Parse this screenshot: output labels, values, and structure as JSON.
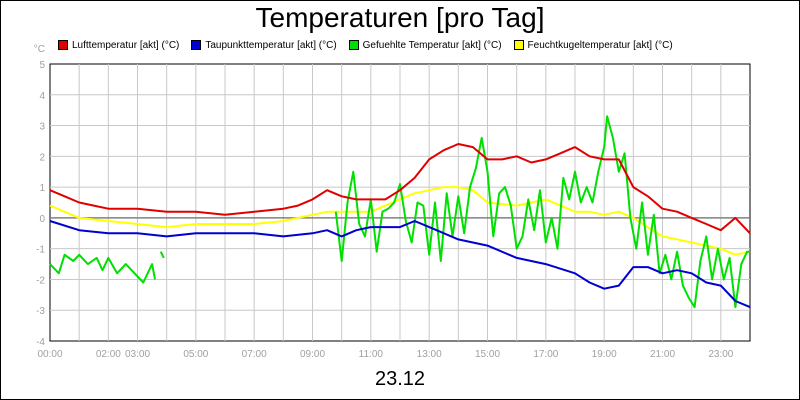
{
  "title": "Temperaturen [pro Tag]",
  "date_label": "23.12",
  "chart_data": {
    "type": "line",
    "unit": "°C",
    "ylim": [
      -4,
      5
    ],
    "yticks": [
      "-4",
      "-3",
      "-2",
      "-1",
      "0",
      "1",
      "2",
      "3",
      "4",
      "5"
    ],
    "xlim": [
      0,
      24
    ],
    "xticks": [
      "00:00",
      "02:00",
      "03:00",
      "05:00",
      "07:00",
      "09:00",
      "11:00",
      "13:00",
      "15:00",
      "17:00",
      "19:00",
      "21:00",
      "23:00"
    ],
    "xtick_hours": [
      0,
      2,
      3,
      5,
      7,
      9,
      11,
      13,
      15,
      17,
      19,
      21,
      23
    ],
    "grid": true,
    "legend_position": "top",
    "series": [
      {
        "name": "Lufttemperatur [akt] (°C)",
        "color": "#e00000",
        "points": [
          [
            0,
            0.9
          ],
          [
            0.5,
            0.7
          ],
          [
            1,
            0.5
          ],
          [
            1.5,
            0.4
          ],
          [
            2,
            0.3
          ],
          [
            2.5,
            0.3
          ],
          [
            3,
            0.3
          ],
          [
            3.5,
            0.25
          ],
          [
            4,
            0.2
          ],
          [
            5,
            0.2
          ],
          [
            6,
            0.1
          ],
          [
            7,
            0.2
          ],
          [
            8,
            0.3
          ],
          [
            8.5,
            0.4
          ],
          [
            9,
            0.6
          ],
          [
            9.5,
            0.9
          ],
          [
            10,
            0.7
          ],
          [
            10.5,
            0.6
          ],
          [
            11,
            0.6
          ],
          [
            11.5,
            0.6
          ],
          [
            12,
            0.9
          ],
          [
            12.5,
            1.3
          ],
          [
            13,
            1.9
          ],
          [
            13.5,
            2.2
          ],
          [
            14,
            2.4
          ],
          [
            14.5,
            2.3
          ],
          [
            15,
            1.9
          ],
          [
            15.5,
            1.9
          ],
          [
            16,
            2.0
          ],
          [
            16.5,
            1.8
          ],
          [
            17,
            1.9
          ],
          [
            17.5,
            2.1
          ],
          [
            18,
            2.3
          ],
          [
            18.5,
            2.0
          ],
          [
            19,
            1.9
          ],
          [
            19.5,
            1.9
          ],
          [
            20,
            1.0
          ],
          [
            20.5,
            0.7
          ],
          [
            21,
            0.3
          ],
          [
            21.5,
            0.2
          ],
          [
            22,
            0.0
          ],
          [
            22.5,
            -0.2
          ],
          [
            23,
            -0.4
          ],
          [
            23.5,
            0.0
          ],
          [
            24,
            -0.5
          ]
        ]
      },
      {
        "name": "Taupunkttemperatur [akt] (°C)",
        "color": "#0000d0",
        "points": [
          [
            0,
            -0.1
          ],
          [
            1,
            -0.4
          ],
          [
            2,
            -0.5
          ],
          [
            3,
            -0.5
          ],
          [
            4,
            -0.6
          ],
          [
            5,
            -0.5
          ],
          [
            6,
            -0.5
          ],
          [
            7,
            -0.5
          ],
          [
            8,
            -0.6
          ],
          [
            9,
            -0.5
          ],
          [
            9.5,
            -0.4
          ],
          [
            10,
            -0.6
          ],
          [
            10.5,
            -0.4
          ],
          [
            11,
            -0.3
          ],
          [
            12,
            -0.3
          ],
          [
            12.5,
            -0.1
          ],
          [
            13,
            -0.3
          ],
          [
            14,
            -0.7
          ],
          [
            15,
            -0.9
          ],
          [
            16,
            -1.3
          ],
          [
            17,
            -1.5
          ],
          [
            18,
            -1.8
          ],
          [
            18.5,
            -2.1
          ],
          [
            19,
            -2.3
          ],
          [
            19.5,
            -2.2
          ],
          [
            20,
            -1.6
          ],
          [
            20.5,
            -1.6
          ],
          [
            21,
            -1.8
          ],
          [
            21.5,
            -1.7
          ],
          [
            22,
            -1.8
          ],
          [
            22.5,
            -2.1
          ],
          [
            23,
            -2.2
          ],
          [
            23.5,
            -2.7
          ],
          [
            24,
            -2.9
          ]
        ]
      },
      {
        "name": "Gefuehlte Temperatur [akt] (°C)",
        "color": "#00e000",
        "segments": [
          [
            [
              0,
              -1.5
            ],
            [
              0.3,
              -1.8
            ],
            [
              0.5,
              -1.2
            ],
            [
              0.8,
              -1.4
            ],
            [
              1,
              -1.2
            ],
            [
              1.3,
              -1.5
            ],
            [
              1.6,
              -1.3
            ],
            [
              1.8,
              -1.7
            ],
            [
              2,
              -1.3
            ],
            [
              2.3,
              -1.8
            ],
            [
              2.6,
              -1.5
            ],
            [
              3,
              -1.9
            ],
            [
              3.2,
              -2.1
            ],
            [
              3.5,
              -1.5
            ],
            [
              3.6,
              -2.0
            ]
          ],
          [
            [
              3.8,
              -1.1
            ],
            [
              3.9,
              -1.3
            ]
          ],
          [
            [
              9.8,
              0.2
            ],
            [
              10,
              -1.4
            ],
            [
              10.2,
              0.5
            ],
            [
              10.4,
              1.5
            ],
            [
              10.6,
              -0.2
            ],
            [
              10.8,
              -0.6
            ],
            [
              11,
              0.6
            ],
            [
              11.2,
              -1.1
            ],
            [
              11.4,
              0.2
            ],
            [
              11.6,
              0.3
            ],
            [
              11.8,
              0.5
            ],
            [
              12,
              1.1
            ],
            [
              12.2,
              -0.1
            ],
            [
              12.4,
              -0.8
            ],
            [
              12.6,
              0.5
            ],
            [
              12.8,
              0.4
            ],
            [
              13,
              -1.2
            ],
            [
              13.2,
              0.5
            ],
            [
              13.4,
              -1.4
            ],
            [
              13.6,
              0.8
            ],
            [
              13.8,
              -0.6
            ],
            [
              14,
              0.7
            ],
            [
              14.2,
              -0.5
            ],
            [
              14.4,
              1.0
            ],
            [
              14.6,
              1.6
            ],
            [
              14.8,
              2.6
            ],
            [
              15,
              1.5
            ],
            [
              15.2,
              -0.6
            ],
            [
              15.4,
              0.8
            ],
            [
              15.6,
              1.0
            ],
            [
              15.8,
              0.4
            ],
            [
              16,
              -1.0
            ],
            [
              16.2,
              -0.6
            ],
            [
              16.4,
              0.6
            ],
            [
              16.6,
              -0.4
            ],
            [
              16.8,
              0.9
            ],
            [
              17,
              -0.8
            ],
            [
              17.2,
              0.0
            ],
            [
              17.4,
              -1.0
            ],
            [
              17.6,
              1.3
            ],
            [
              17.8,
              0.6
            ],
            [
              18,
              1.5
            ],
            [
              18.2,
              0.5
            ],
            [
              18.4,
              1.0
            ],
            [
              18.6,
              0.5
            ],
            [
              18.8,
              1.5
            ],
            [
              19,
              2.3
            ],
            [
              19.1,
              3.3
            ],
            [
              19.3,
              2.6
            ],
            [
              19.5,
              1.5
            ],
            [
              19.7,
              2.1
            ],
            [
              19.9,
              0.0
            ],
            [
              20.1,
              -1.0
            ],
            [
              20.3,
              0.5
            ],
            [
              20.5,
              -1.2
            ],
            [
              20.7,
              0.1
            ],
            [
              20.9,
              -1.8
            ],
            [
              21.1,
              -1.2
            ],
            [
              21.3,
              -2.0
            ],
            [
              21.5,
              -1.1
            ],
            [
              21.7,
              -2.2
            ],
            [
              21.9,
              -2.6
            ],
            [
              22.1,
              -2.9
            ],
            [
              22.3,
              -1.4
            ],
            [
              22.5,
              -0.6
            ],
            [
              22.7,
              -2.0
            ],
            [
              22.9,
              -1.0
            ],
            [
              23.1,
              -2.0
            ],
            [
              23.3,
              -1.3
            ],
            [
              23.5,
              -2.9
            ],
            [
              23.7,
              -1.5
            ],
            [
              23.9,
              -1.1
            ],
            [
              24,
              -1.1
            ]
          ]
        ]
      },
      {
        "name": "Feuchtkugeltemperatur [akt] (°C)",
        "color": "#ffff00",
        "points": [
          [
            0,
            0.4
          ],
          [
            1,
            0.0
          ],
          [
            2,
            -0.1
          ],
          [
            3,
            -0.2
          ],
          [
            4,
            -0.3
          ],
          [
            5,
            -0.2
          ],
          [
            6,
            -0.2
          ],
          [
            7,
            -0.2
          ],
          [
            8,
            -0.1
          ],
          [
            9,
            0.1
          ],
          [
            9.5,
            0.2
          ],
          [
            10,
            0.2
          ],
          [
            11,
            0.2
          ],
          [
            11.5,
            0.4
          ],
          [
            12,
            0.6
          ],
          [
            12.5,
            0.8
          ],
          [
            13,
            0.9
          ],
          [
            13.5,
            1.0
          ],
          [
            14,
            1.0
          ],
          [
            14.5,
            0.9
          ],
          [
            15,
            0.5
          ],
          [
            16,
            0.4
          ],
          [
            17,
            0.6
          ],
          [
            17.5,
            0.4
          ],
          [
            18,
            0.2
          ],
          [
            18.5,
            0.2
          ],
          [
            19,
            0.1
          ],
          [
            19.5,
            0.2
          ],
          [
            20,
            0.0
          ],
          [
            20.5,
            -0.3
          ],
          [
            21,
            -0.6
          ],
          [
            21.5,
            -0.7
          ],
          [
            22,
            -0.8
          ],
          [
            22.5,
            -0.9
          ],
          [
            23,
            -1.0
          ],
          [
            23.5,
            -1.2
          ],
          [
            24,
            -1.1
          ]
        ]
      }
    ]
  }
}
